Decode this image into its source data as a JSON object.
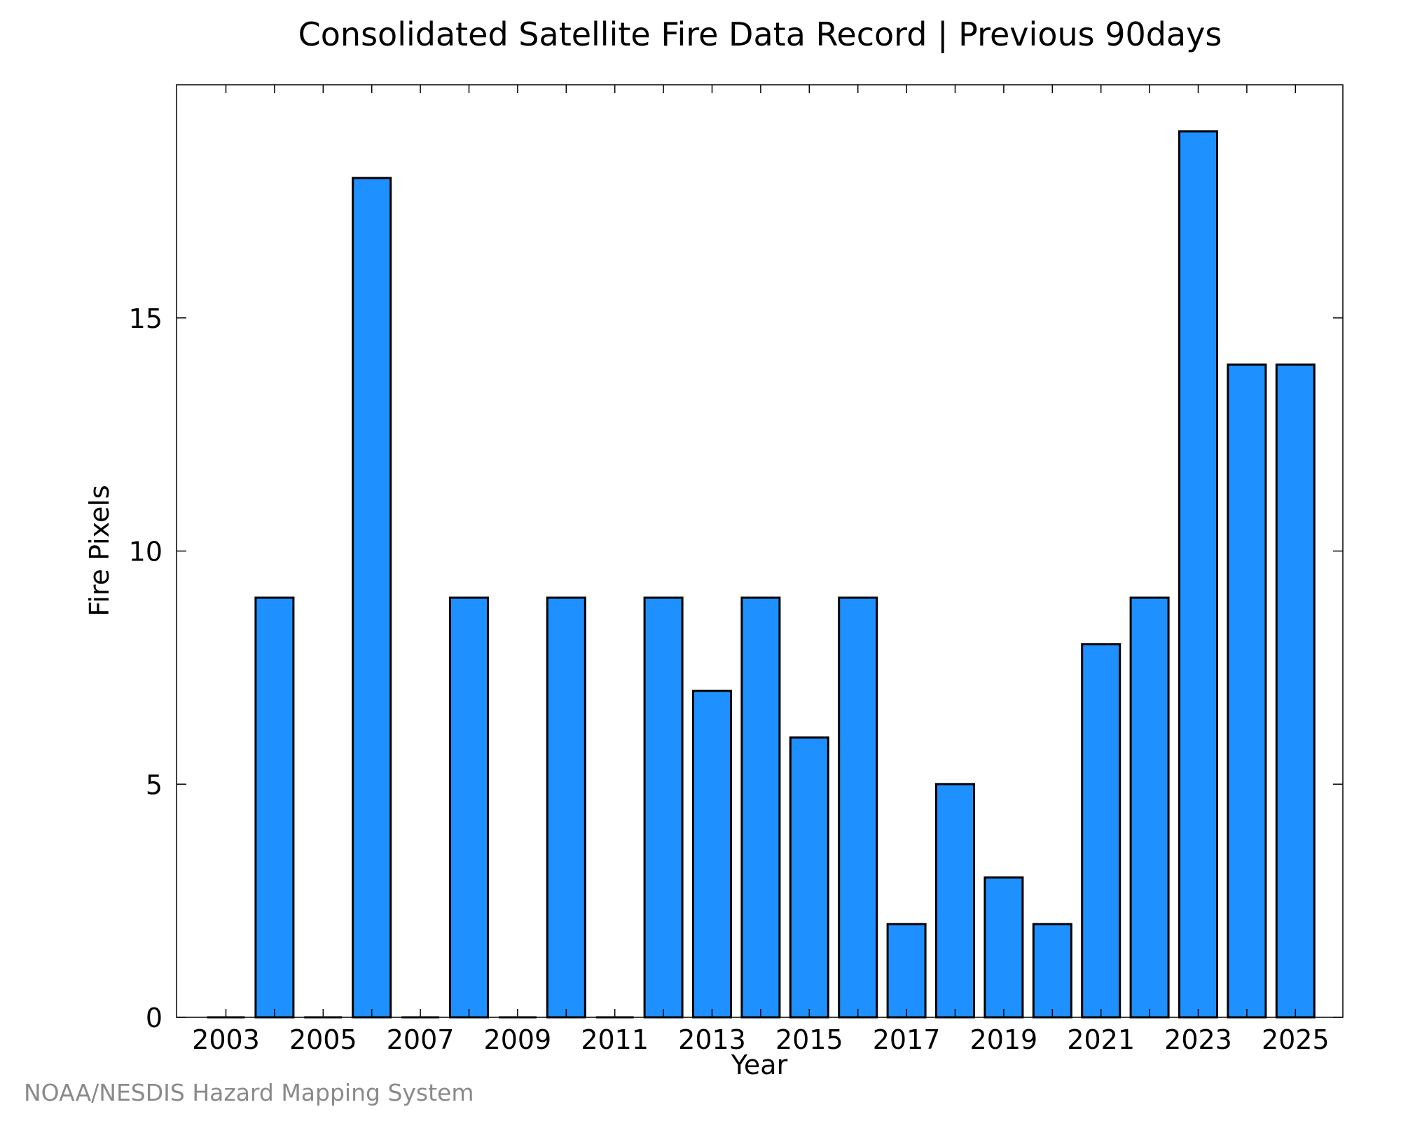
{
  "chart_data": {
    "type": "bar",
    "title": "Consolidated Satellite Fire Data Record | Previous 90days",
    "xlabel": "Year",
    "ylabel": "Fire Pixels",
    "categories": [
      "2003",
      "2004",
      "2005",
      "2006",
      "2007",
      "2008",
      "2009",
      "2010",
      "2011",
      "2012",
      "2013",
      "2014",
      "2015",
      "2016",
      "2017",
      "2018",
      "2019",
      "2020",
      "2021",
      "2022",
      "2023",
      "2024",
      "2025"
    ],
    "values": [
      0,
      9,
      0,
      18,
      0,
      9,
      0,
      9,
      0,
      9,
      7,
      9,
      6,
      9,
      2,
      5,
      3,
      2,
      8,
      9,
      19,
      14,
      14
    ],
    "x_tick_labels": [
      "2003",
      "2005",
      "2007",
      "2009",
      "2011",
      "2013",
      "2015",
      "2017",
      "2019",
      "2021",
      "2023",
      "2025"
    ],
    "y_tick_labels": [
      "0",
      "5",
      "10",
      "15"
    ],
    "y_ticks": [
      0,
      5,
      10,
      15
    ],
    "ylim": [
      0,
      20
    ],
    "bar_color": "#1e90ff",
    "grid": false,
    "legend": "none"
  },
  "credit": "NOAA/NESDIS Hazard Mapping System"
}
